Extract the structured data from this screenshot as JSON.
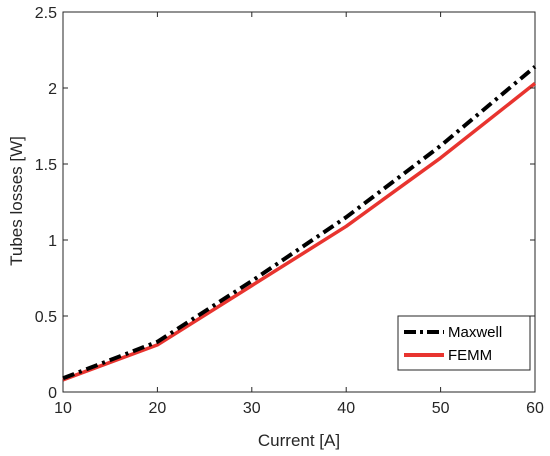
{
  "chart_data": {
    "type": "line",
    "xlabel": "Current [A]",
    "ylabel": "Tubes losses [W]",
    "xlim": [
      10,
      60
    ],
    "ylim": [
      0,
      2.5
    ],
    "x_ticks": [
      10,
      20,
      30,
      40,
      50,
      60
    ],
    "y_ticks": [
      0,
      0.5,
      1,
      1.5,
      2,
      2.5
    ],
    "x_tick_labels": [
      "10",
      "20",
      "30",
      "40",
      "50",
      "60"
    ],
    "y_tick_labels": [
      "0",
      "0.5",
      "1",
      "1.5",
      "2",
      "2.5"
    ],
    "grid": false,
    "legend_position": "bottom-right",
    "series": [
      {
        "name": "Maxwell",
        "x": [
          10,
          20,
          30,
          40,
          50,
          60
        ],
        "values": [
          0.09,
          0.33,
          0.73,
          1.15,
          1.62,
          2.14
        ],
        "color": "#000000",
        "style": "dash-dot"
      },
      {
        "name": "FEMM",
        "x": [
          10,
          20,
          30,
          40,
          50,
          60
        ],
        "values": [
          0.08,
          0.31,
          0.7,
          1.09,
          1.54,
          2.03
        ],
        "color": "#e8342f",
        "style": "solid"
      }
    ]
  }
}
